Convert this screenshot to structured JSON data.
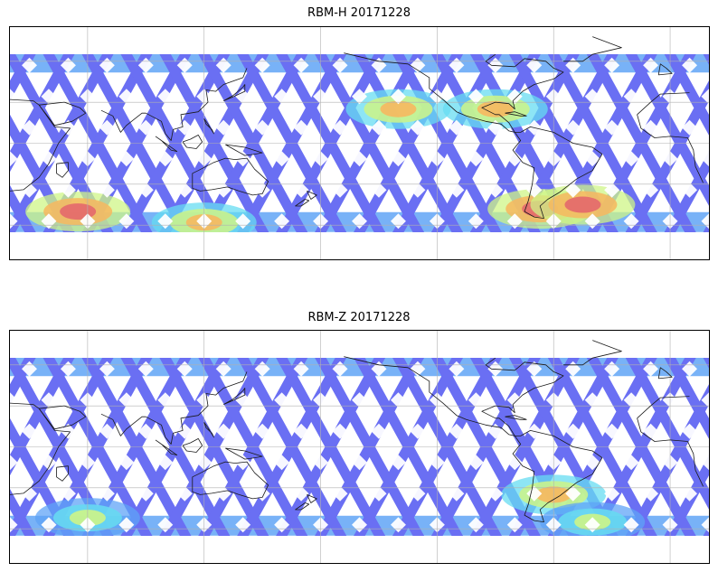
{
  "figure": {
    "panels": [
      {
        "id": "top",
        "title": "RBM-H 20171228",
        "hot_zones": [
          {
            "lon": 55,
            "lat": -50,
            "severity": "high"
          },
          {
            "lon": 293,
            "lat": -48,
            "severity": "high"
          },
          {
            "lon": 315,
            "lat": -45,
            "severity": "high"
          },
          {
            "lon": 120,
            "lat": -58,
            "severity": "medium"
          },
          {
            "lon": 220,
            "lat": 25,
            "severity": "medium"
          },
          {
            "lon": 270,
            "lat": 25,
            "severity": "medium"
          }
        ]
      },
      {
        "id": "bottom",
        "title": "RBM-Z 20171228",
        "hot_zones": [
          {
            "lon": 300,
            "lat": -35,
            "severity": "medium"
          },
          {
            "lon": 320,
            "lat": -55,
            "severity": "low"
          },
          {
            "lon": 60,
            "lat": -52,
            "severity": "low"
          }
        ]
      }
    ],
    "colors": {
      "low": "#5a5ff2",
      "mid_low": "#4d9af5",
      "mid": "#56d8f0",
      "mid_high": "#c9f47a",
      "high": "#f6b04e",
      "very_high": "#e1585c"
    }
  }
}
